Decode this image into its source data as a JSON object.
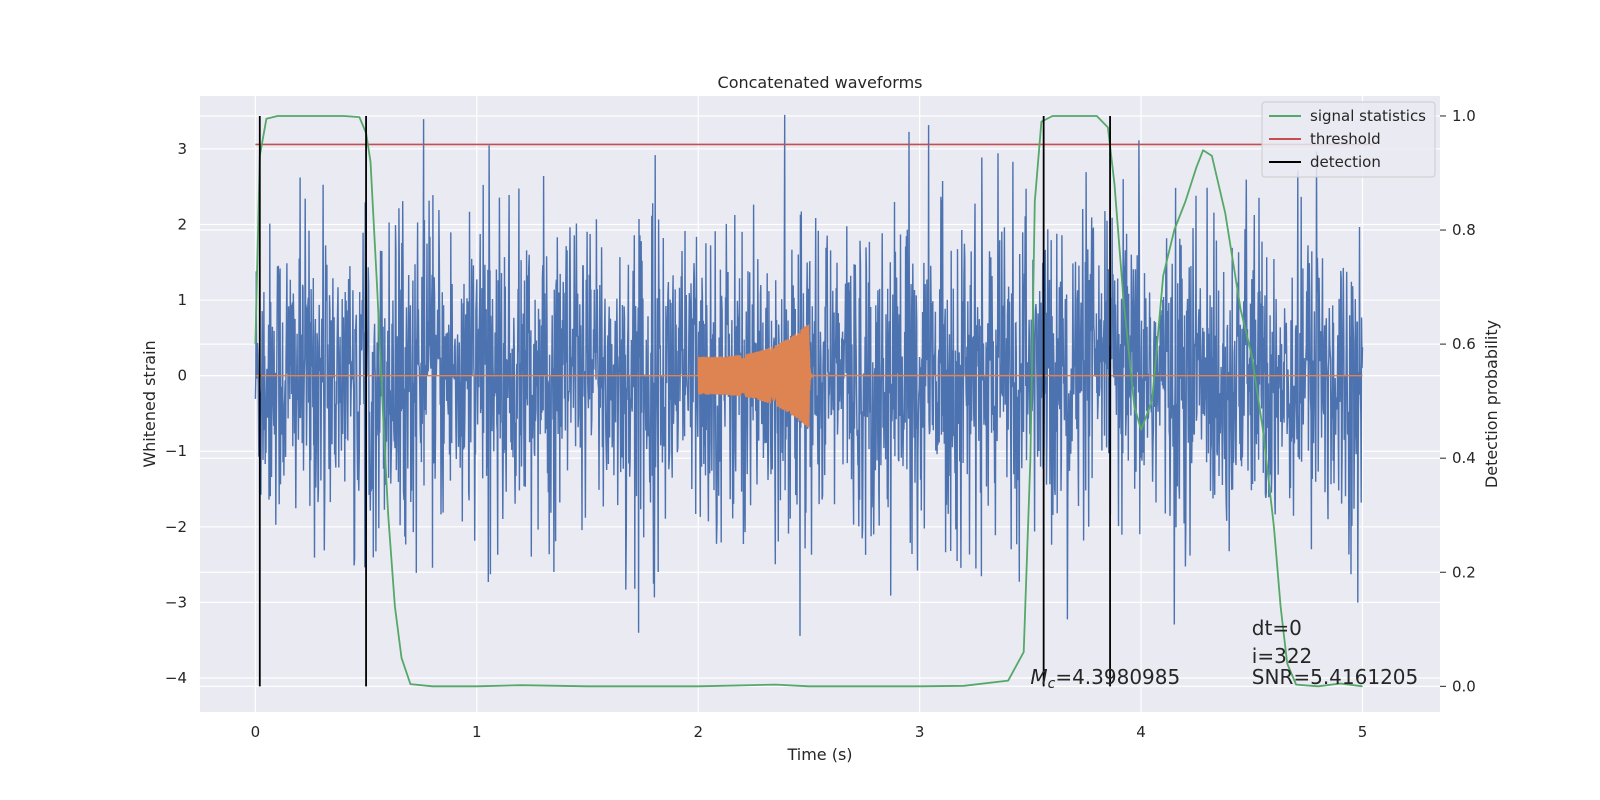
{
  "chart_data": {
    "type": "line",
    "title": "Concatenated waveforms",
    "xlabel": "Time (s)",
    "ylabel": "Whitened strain",
    "ylabel_right": "Detection probability",
    "xlim": [
      -0.25,
      5.35
    ],
    "ylim": [
      -4.45,
      3.7
    ],
    "ylim_right": [
      -0.045,
      1.035
    ],
    "x_ticks": [
      0,
      1,
      2,
      3,
      4,
      5
    ],
    "y_ticks": [
      -4,
      -3,
      -2,
      -1,
      0,
      1,
      2,
      3
    ],
    "y_ticks_right": [
      0.0,
      0.2,
      0.4,
      0.6,
      0.8,
      1.0
    ],
    "grid": true,
    "legend_position": "top-right",
    "series": [
      {
        "name": "",
        "axis": "left",
        "color": "#4c72b0",
        "kind": "noise",
        "x_range": [
          0,
          5
        ],
        "typical_amplitude": 1.6,
        "peak_amplitude": 3.45
      },
      {
        "name": "",
        "axis": "left",
        "color": "#dd8452",
        "kind": "chirp",
        "x_range": [
          2.0,
          2.5
        ],
        "start_amplitude": 0.25,
        "peak_amplitude": 0.7,
        "merger_time": 2.5
      },
      {
        "name": "signal statistics",
        "axis": "right",
        "color": "#55a868",
        "x": [
          0,
          0.02,
          0.05,
          0.1,
          0.2,
          0.3,
          0.4,
          0.47,
          0.5,
          0.52,
          0.55,
          0.58,
          0.6,
          0.63,
          0.66,
          0.7,
          0.8,
          1.0,
          1.2,
          1.5,
          2.0,
          2.35,
          2.5,
          3.0,
          3.2,
          3.4,
          3.47,
          3.5,
          3.52,
          3.55,
          3.6,
          3.7,
          3.8,
          3.85,
          3.88,
          3.92,
          3.97,
          4.0,
          4.05,
          4.1,
          4.15,
          4.2,
          4.25,
          4.28,
          4.32,
          4.38,
          4.45,
          4.5,
          4.55,
          4.6,
          4.63,
          4.66,
          4.7,
          4.8,
          4.9,
          5.0
        ],
        "y": [
          0.6,
          0.93,
          0.995,
          1.0,
          1.0,
          1.0,
          1.0,
          0.998,
          0.97,
          0.92,
          0.7,
          0.45,
          0.3,
          0.14,
          0.05,
          0.004,
          0.0,
          0.0,
          0.002,
          0.0,
          0.0,
          0.003,
          0.0,
          0.0,
          0.001,
          0.01,
          0.06,
          0.4,
          0.85,
          0.99,
          1.0,
          1.0,
          1.0,
          0.98,
          0.88,
          0.68,
          0.49,
          0.45,
          0.5,
          0.72,
          0.8,
          0.85,
          0.91,
          0.94,
          0.93,
          0.83,
          0.66,
          0.58,
          0.45,
          0.28,
          0.14,
          0.04,
          0.003,
          0.0,
          0.005,
          0.0
        ]
      },
      {
        "name": "threshold",
        "axis": "right",
        "color": "#c44e52",
        "x": [
          0,
          5.05
        ],
        "y": [
          0.95,
          0.95
        ]
      }
    ],
    "detection": {
      "name": "detection",
      "axis": "right",
      "color": "#000000",
      "x": [
        0.02,
        0.5,
        3.56,
        3.86
      ],
      "y_range": [
        0.0,
        1.0
      ]
    },
    "annotations": [
      {
        "text_sym": "M",
        "text_sub": "c",
        "text": "=4.3980985",
        "x": 3.5,
        "y": -4.0
      },
      {
        "text": "dt=0",
        "x": 4.5,
        "y": -3.35
      },
      {
        "text": "i=322",
        "x": 4.5,
        "y": -3.72
      },
      {
        "text": "SNR=5.4161205",
        "x": 4.5,
        "y": -4.0
      }
    ]
  }
}
